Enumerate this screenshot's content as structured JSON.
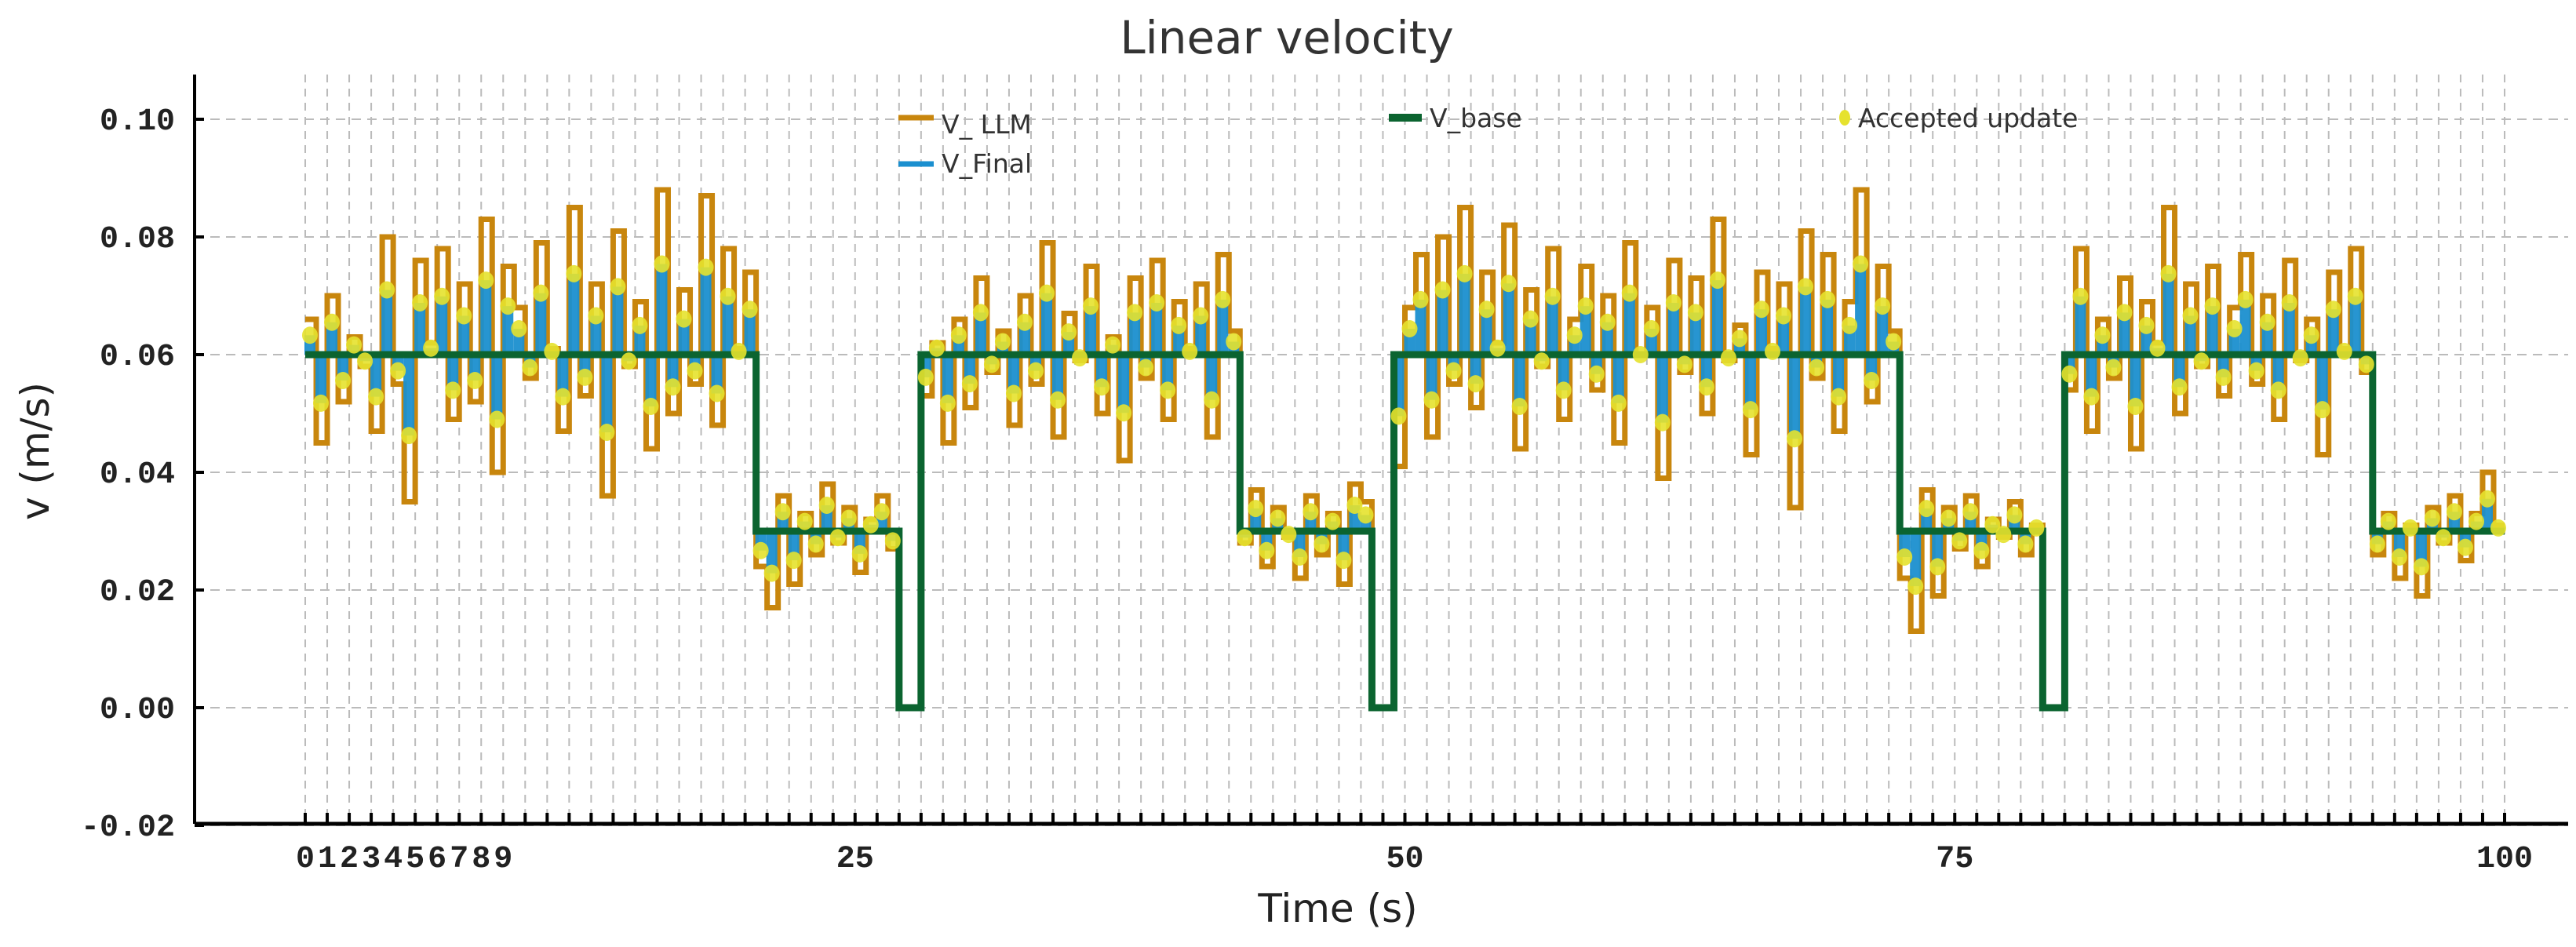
{
  "chart_data": {
    "type": "line",
    "title": "Linear velocity",
    "xlabel": "Time (s)",
    "ylabel": "v (m/s)",
    "xlim": [
      0,
      100
    ],
    "ylim": [
      -0.02,
      0.108
    ],
    "grid": true,
    "legend_placement": "top",
    "x_tick_labels": [
      "0",
      "1",
      "2",
      "3",
      "4",
      "5",
      "6",
      "7",
      "8",
      "9",
      "25",
      "50",
      "75",
      "100"
    ],
    "x_tick_values": [
      0,
      1,
      2,
      3,
      4,
      5,
      6,
      7,
      8,
      9,
      25,
      50,
      75,
      100
    ],
    "y_ticks": [
      -0.02,
      0.0,
      0.02,
      0.04,
      0.06,
      0.08,
      0.1
    ],
    "y_tick_labels": [
      "-0.02",
      "0.00",
      "0.02",
      "0.04",
      "0.06",
      "0.08",
      "0.10"
    ],
    "legend": {
      "llm": "V_ LLM",
      "final": "V_Final",
      "base": "V_base",
      "accepted": "Accepted update"
    },
    "colors": {
      "llm": "#c8860d",
      "final": "#1b8fcf",
      "base": "#0b6430",
      "accepted": "#e6e22e"
    },
    "sample_step_s": 0.5,
    "acceptance_gain": 0.55,
    "base_segments": [
      {
        "t0": 0,
        "t1": 20.5,
        "v": 0.06
      },
      {
        "t0": 20.5,
        "t1": 27,
        "v": 0.03
      },
      {
        "t0": 27,
        "t1": 28,
        "v": 0.0
      },
      {
        "t0": 28,
        "t1": 42.5,
        "v": 0.06
      },
      {
        "t0": 42.5,
        "t1": 48.5,
        "v": 0.03
      },
      {
        "t0": 48.5,
        "t1": 49.5,
        "v": 0.0
      },
      {
        "t0": 49.5,
        "t1": 72.5,
        "v": 0.06
      },
      {
        "t0": 72.5,
        "t1": 79,
        "v": 0.03
      },
      {
        "t0": 79,
        "t1": 80,
        "v": 0.0
      },
      {
        "t0": 80,
        "t1": 94,
        "v": 0.06
      },
      {
        "t0": 94,
        "t1": 100,
        "v": 0.03
      }
    ],
    "v_llm": [
      0.066,
      0.045,
      0.07,
      0.052,
      0.063,
      0.058,
      0.047,
      0.08,
      0.055,
      0.035,
      0.076,
      0.062,
      0.078,
      0.049,
      0.072,
      0.052,
      0.083,
      0.04,
      0.075,
      0.068,
      0.056,
      0.079,
      0.061,
      0.047,
      0.085,
      0.053,
      0.072,
      0.036,
      0.081,
      0.058,
      0.069,
      0.044,
      0.088,
      0.05,
      0.071,
      0.055,
      0.087,
      0.048,
      0.078,
      0.061,
      0.074,
      0.024,
      0.017,
      0.036,
      0.021,
      0.033,
      0.026,
      0.038,
      0.028,
      0.034,
      0.023,
      0.032,
      0.036,
      0.027,
      0,
      0,
      0.053,
      0.062,
      0.045,
      0.066,
      0.051,
      0.073,
      0.057,
      0.064,
      0.048,
      0.07,
      0.055,
      0.079,
      0.046,
      0.067,
      0.059,
      0.075,
      0.05,
      0.063,
      0.042,
      0.073,
      0.056,
      0.076,
      0.049,
      0.069,
      0.061,
      0.072,
      0.046,
      0.077,
      0.064,
      0.028,
      0.037,
      0.024,
      0.034,
      0.029,
      0.022,
      0.036,
      0.026,
      0.033,
      0.021,
      0.038,
      0.035,
      0,
      0,
      0.041,
      0.068,
      0.077,
      0.046,
      0.08,
      0.055,
      0.085,
      0.051,
      0.074,
      0.062,
      0.082,
      0.044,
      0.071,
      0.058,
      0.078,
      0.049,
      0.066,
      0.075,
      0.054,
      0.07,
      0.045,
      0.079,
      0.06,
      0.068,
      0.039,
      0.076,
      0.057,
      0.073,
      0.05,
      0.083,
      0.059,
      0.065,
      0.043,
      0.074,
      0.061,
      0.072,
      0.034,
      0.081,
      0.056,
      0.077,
      0.047,
      0.069,
      0.088,
      0.052,
      0.075,
      0.064,
      0.022,
      0.013,
      0.037,
      0.019,
      0.034,
      0.027,
      0.036,
      0.024,
      0.032,
      0.029,
      0.035,
      0.026,
      0.031,
      0,
      0,
      0.054,
      0.078,
      0.047,
      0.066,
      0.056,
      0.073,
      0.044,
      0.069,
      0.062,
      0.085,
      0.05,
      0.072,
      0.058,
      0.075,
      0.053,
      0.068,
      0.077,
      0.055,
      0.07,
      0.049,
      0.076,
      0.059,
      0.066,
      0.043,
      0.074,
      0.061,
      0.078,
      0.057,
      0.026,
      0.033,
      0.022,
      0.031,
      0.019,
      0.034,
      0.028,
      0.036,
      0.025,
      0.033,
      0.04,
      0.031
    ]
  }
}
